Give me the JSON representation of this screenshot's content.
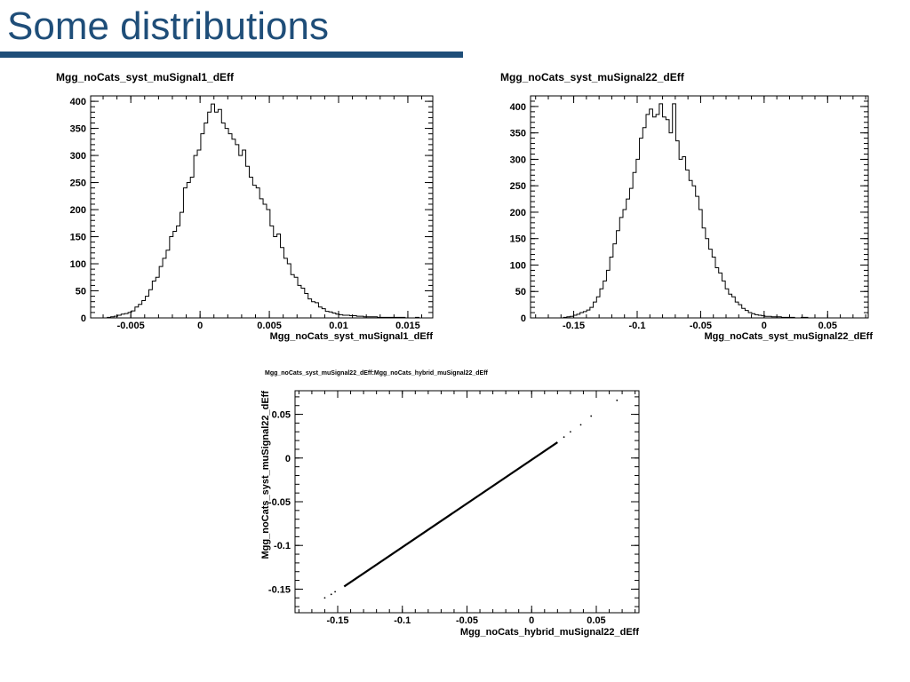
{
  "slide": {
    "title": "Some distributions"
  },
  "colors": {
    "title": "#1f4e79",
    "rule": "#1f4e79",
    "ink": "#000000",
    "background": "#ffffff"
  },
  "chart_data": [
    {
      "type": "histogram",
      "title": "Mgg_noCats_syst_muSignal1_dEff",
      "xlabel": "Mgg_noCats_syst_muSignal1_dEff",
      "ylabel": "",
      "xlim": [
        -0.0079,
        0.0168
      ],
      "ylim": [
        0,
        410
      ],
      "xticks": [
        -0.005,
        0,
        0.005,
        0.01,
        0.015
      ],
      "xtick_labels": [
        "-0.005",
        "0",
        "0.005",
        "0.01",
        "0.015"
      ],
      "yticks": [
        0,
        50,
        100,
        150,
        200,
        250,
        300,
        350,
        400
      ],
      "ytick_labels": [
        "0",
        "50",
        "100",
        "150",
        "200",
        "250",
        "300",
        "350",
        "400"
      ],
      "bin_start": -0.0067,
      "bin_width": 0.00025,
      "counts": [
        1,
        2,
        3,
        5,
        7,
        8,
        10,
        13,
        20,
        25,
        32,
        40,
        52,
        68,
        75,
        95,
        110,
        125,
        150,
        160,
        170,
        195,
        240,
        250,
        260,
        300,
        310,
        340,
        360,
        380,
        395,
        380,
        385,
        360,
        350,
        340,
        330,
        320,
        300,
        310,
        280,
        260,
        245,
        240,
        220,
        210,
        200,
        170,
        150,
        155,
        130,
        110,
        100,
        80,
        75,
        60,
        55,
        45,
        35,
        30,
        28,
        20,
        17,
        12,
        11,
        9,
        7,
        6,
        5,
        5,
        4,
        4,
        3,
        3,
        2,
        2,
        2,
        2,
        1,
        1,
        1,
        1,
        1,
        1,
        1,
        1,
        0,
        0,
        0,
        1
      ],
      "grid": false,
      "legend": "none"
    },
    {
      "type": "histogram",
      "title": "Mgg_noCats_syst_muSignal22_dEff",
      "xlabel": "Mgg_noCats_syst_muSignal22_dEff",
      "ylabel": "",
      "xlim": [
        -0.184,
        0.082
      ],
      "ylim": [
        0,
        420
      ],
      "xticks": [
        -0.15,
        -0.1,
        -0.05,
        0,
        0.05
      ],
      "xtick_labels": [
        "-0.15",
        "-0.1",
        "-0.05",
        "0",
        "0.05"
      ],
      "yticks": [
        0,
        50,
        100,
        150,
        200,
        250,
        300,
        350,
        400
      ],
      "ytick_labels": [
        "0",
        "50",
        "100",
        "150",
        "200",
        "250",
        "300",
        "350",
        "400"
      ],
      "bin_start": -0.158,
      "bin_width": 0.0026,
      "counts": [
        1,
        2,
        3,
        5,
        7,
        10,
        12,
        15,
        20,
        30,
        40,
        55,
        70,
        90,
        115,
        140,
        165,
        190,
        205,
        225,
        245,
        275,
        300,
        340,
        360,
        385,
        395,
        380,
        385,
        405,
        380,
        375,
        350,
        405,
        335,
        300,
        305,
        280,
        260,
        250,
        230,
        205,
        170,
        150,
        130,
        115,
        95,
        85,
        70,
        55,
        45,
        40,
        30,
        25,
        18,
        14,
        10,
        8,
        6,
        5,
        4,
        3,
        3,
        2,
        2,
        2,
        1,
        1,
        1,
        1,
        0,
        0,
        1,
        1
      ],
      "grid": false,
      "legend": "none"
    },
    {
      "type": "scatter",
      "title": "Mgg_noCats_syst_muSignal22_dEff:Mgg_noCats_hybrid_muSignal22_dEff",
      "xlabel": "Mgg_noCats_hybrid_muSignal22_dEff",
      "ylabel": "Mgg_noCats_syst_muSignal22_dEff",
      "xlim": [
        -0.183,
        0.083
      ],
      "ylim": [
        -0.177,
        0.077
      ],
      "xticks": [
        -0.15,
        -0.1,
        -0.05,
        0,
        0.05
      ],
      "xtick_labels": [
        "-0.15",
        "-0.1",
        "-0.05",
        "0",
        "0.05"
      ],
      "yticks": [
        -0.15,
        -0.1,
        -0.05,
        0,
        0.05
      ],
      "ytick_labels": [
        "-0.15",
        "-0.1",
        "-0.05",
        "0",
        "0.05"
      ],
      "line_segment": {
        "x": [
          -0.145,
          0.02
        ],
        "y": [
          -0.147,
          0.018
        ]
      },
      "outlier_points": [
        {
          "x": -0.16,
          "y": -0.16
        },
        {
          "x": -0.155,
          "y": -0.156
        },
        {
          "x": -0.152,
          "y": -0.153
        },
        {
          "x": 0.025,
          "y": 0.024
        },
        {
          "x": 0.03,
          "y": 0.03
        },
        {
          "x": 0.038,
          "y": 0.038
        },
        {
          "x": 0.046,
          "y": 0.048
        },
        {
          "x": 0.066,
          "y": 0.066
        }
      ],
      "grid": false,
      "legend": "none"
    }
  ]
}
